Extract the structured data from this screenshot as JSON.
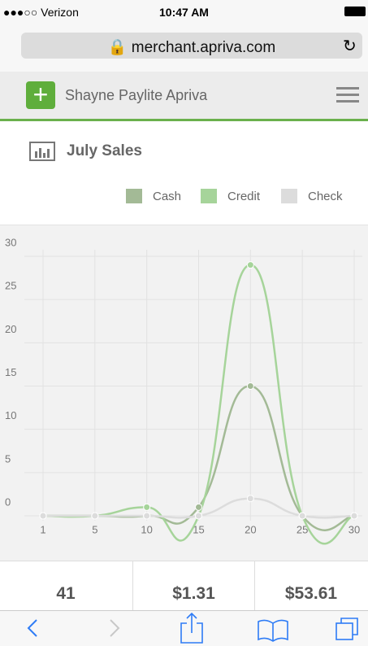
{
  "status_bar": {
    "carrier": "●●●○○ Verizon",
    "time": "10:47 AM"
  },
  "url_bar": {
    "url": "merchant.apriva.com"
  },
  "header": {
    "title": "Shayne Paylite Apriva"
  },
  "chart_data": {
    "type": "line",
    "title": "July Sales",
    "categories": [
      "1",
      "5",
      "10",
      "15",
      "20",
      "25",
      "30"
    ],
    "series": [
      {
        "name": "Cash",
        "color": "#a3ba96",
        "values": [
          0,
          0,
          0,
          1,
          15,
          0,
          0
        ]
      },
      {
        "name": "Credit",
        "color": "#a6d49a",
        "values": [
          0,
          0,
          1,
          0,
          29,
          0,
          0
        ]
      },
      {
        "name": "Check",
        "color": "#dcdcdc",
        "values": [
          0,
          0,
          0,
          0,
          2,
          0,
          0
        ]
      }
    ],
    "ylim": [
      0,
      30
    ],
    "yticks": [
      0,
      5,
      10,
      15,
      20,
      25,
      30
    ],
    "grid": true,
    "legend": "top-right"
  },
  "summary": [
    "41",
    "$1.31",
    "$53.61"
  ]
}
